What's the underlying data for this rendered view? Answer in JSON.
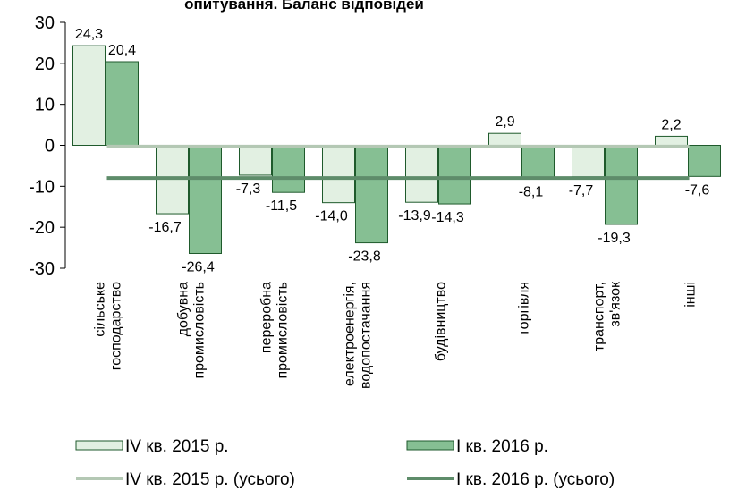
{
  "chart_data": {
    "type": "bar",
    "title": "опитування. Баланс відповідей",
    "categories": [
      "сільське\nгосподарство",
      "добувна\nпромисловість",
      "переробна\nпромисловість",
      "електроенергія,\nводопостачання",
      "будівництво",
      "торгівля",
      "транспорт,\nзв'язок",
      "інші"
    ],
    "series": [
      {
        "name": "IV кв. 2015 р.",
        "color": "#e2f0e2",
        "values": [
          24.3,
          -16.7,
          -7.3,
          -14.0,
          -13.9,
          2.9,
          -7.7,
          2.2
        ],
        "value_labels": [
          "24,3",
          "-16,7",
          "-7,3",
          "-14,0",
          "-13,9",
          "2,9",
          "-7,7",
          "2,2"
        ]
      },
      {
        "name": "I кв. 2016 р.",
        "color": "#86bf93",
        "values": [
          20.4,
          -26.4,
          -11.5,
          -23.8,
          -14.3,
          -8.1,
          -19.3,
          -7.6
        ],
        "value_labels": [
          "20,4",
          "-26,4",
          "-11,5",
          "-23,8",
          "-14,3",
          "-8,1",
          "-19,3",
          "-7,6"
        ]
      },
      {
        "name": "IV кв. 2015 р. (усього)",
        "type": "line",
        "color": "#b4c8b4",
        "values": [
          -0.3,
          -0.3,
          -0.3,
          -0.3,
          -0.3,
          -0.3,
          -0.3,
          -0.3
        ]
      },
      {
        "name": "I кв. 2016 р. (усього)",
        "type": "line",
        "color": "#5e8c6a",
        "values": [
          -8,
          -8,
          -8,
          -8,
          -8,
          -8,
          -8,
          -8
        ]
      }
    ],
    "ylim": [
      -30,
      30
    ],
    "yticks": [
      -30,
      -20,
      -10,
      0,
      10,
      20,
      30
    ]
  }
}
